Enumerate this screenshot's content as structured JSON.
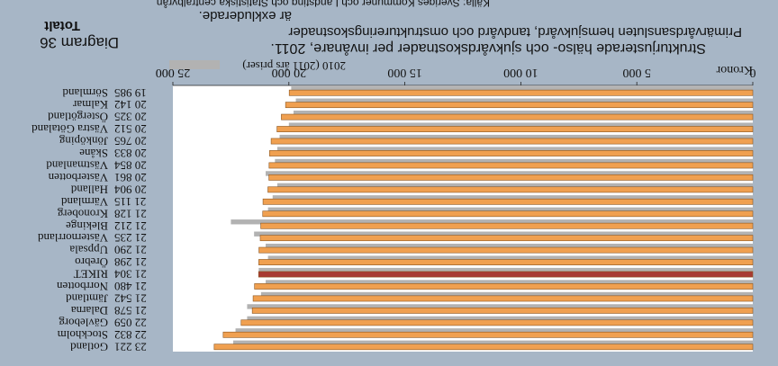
{
  "chart_data": {
    "type": "bar",
    "orientation": "horizontal",
    "rendered_upside_down": true,
    "diagram_number": "Diagram 36",
    "diagram_subtitle": "Totalt",
    "title": "Strukturjusterade hälso- och sjukvårdskostnader per invånare, 2011.",
    "title_line2": "Primärvårdsansluten hemsjukvård, tandvård och omstruktureringskostnader",
    "title_line3": "är exkluderade.",
    "source": "Källa: Sveriges Kommuner och Landsting och Statistiska centralbyrån",
    "unit_label": "Kronor",
    "xlim": [
      0,
      25000
    ],
    "ticks": [
      0,
      5000,
      10000,
      15000,
      20000,
      25000
    ],
    "tick_labels": [
      "0",
      "5 000",
      "10 000",
      "15 000",
      "20 000",
      "25 000"
    ],
    "categories": [
      "Gotland",
      "Stockholm",
      "Gävleborg",
      "Dalarna",
      "Jämtland",
      "Norrbotten",
      "RIKET",
      "Örebro",
      "Uppsala",
      "Västernorrland",
      "Blekinge",
      "Kronoberg",
      "Värmland",
      "Halland",
      "Västerbotten",
      "Västmanland",
      "Skåne",
      "Jönköping",
      "Västra Götaland",
      "Östergötland",
      "Kalmar",
      "Sörmland"
    ],
    "value_labels": [
      "23 221",
      "22 832",
      "22 059",
      "21 578",
      "21 542",
      "21 480",
      "21 304",
      "21 298",
      "21 290",
      "21 235",
      "21 212",
      "21 128",
      "21 115",
      "20 904",
      "20 861",
      "20 854",
      "20 833",
      "20 765",
      "20 512",
      "20 325",
      "20 142",
      "19 985"
    ],
    "series": [
      {
        "name": "2011",
        "values": [
          23221,
          22832,
          22059,
          21578,
          21542,
          21480,
          21304,
          21298,
          21290,
          21235,
          21212,
          21128,
          21115,
          20904,
          20861,
          20854,
          20833,
          20765,
          20512,
          20325,
          20142,
          19985
        ]
      },
      {
        "name": "2010 (2011 års priser)",
        "values": [
          22400,
          22300,
          21800,
          21800,
          21200,
          21000,
          21300,
          20900,
          21000,
          21500,
          22500,
          20900,
          20700,
          20500,
          21000,
          20600,
          20500,
          20400,
          20000,
          19800,
          19700,
          19900
        ]
      }
    ],
    "highlight_category": "RIKET",
    "colors": {
      "series_2011": "#f0a050",
      "series_2010": "#b2b2b2",
      "highlight": "#a83a32",
      "bar_border": "#8a5520",
      "plot_background": "#ffffff",
      "page_background": "#a7b6c6"
    },
    "grid": false,
    "legend_placement": "top-left"
  }
}
